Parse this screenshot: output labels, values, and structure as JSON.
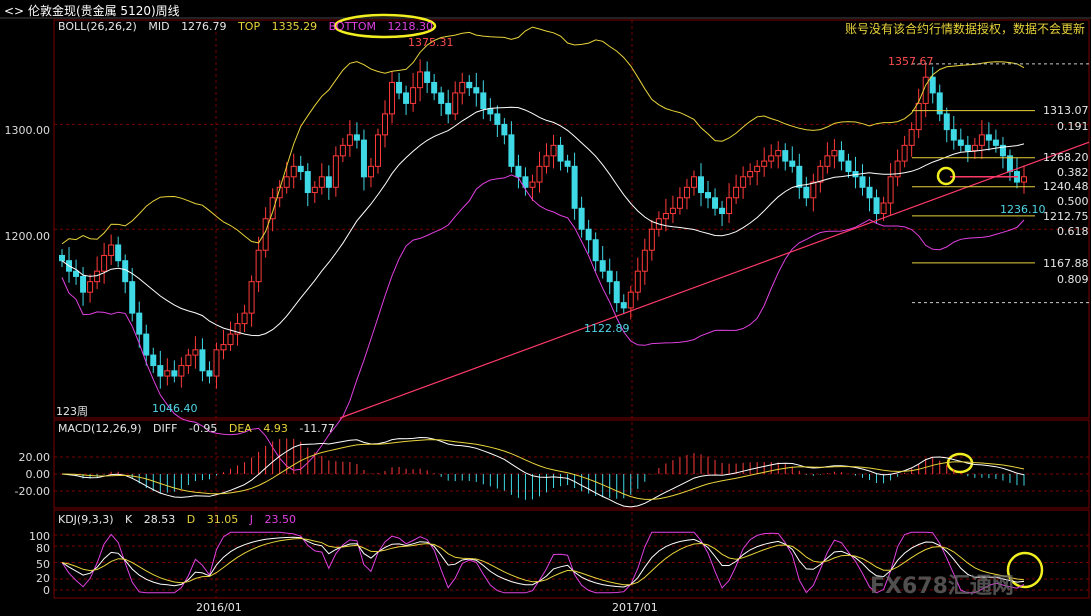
{
  "window": {
    "title": "伦敦金现(贵金属 5120)周线"
  },
  "boll": {
    "label": "BOLL(26,26,2)",
    "mid_label": "MID",
    "mid": "1276.79",
    "top_label": "TOP",
    "top": "1335.29",
    "bottom_label": "BOTTOM",
    "bottom": "1218.30"
  },
  "notice": "账号没有该合约行情数据授权，数据不会更新",
  "macd": {
    "label": "MACD(12,26,9)",
    "diff_label": "DIFF",
    "diff": "-0.95",
    "dea_label": "DEA",
    "dea": "4.93",
    "macd": "-11.77"
  },
  "kdj": {
    "label": "KDJ(9,3,3)",
    "k_label": "K",
    "k": "28.53",
    "d_label": "D",
    "d": "31.05",
    "j_label": "J",
    "j": "23.50"
  },
  "annotations": {
    "high1": "1375.31",
    "low1": "1046.40",
    "low2": "1122.89",
    "high2": "1357.67",
    "last_low": "1236.10",
    "period": "123周"
  },
  "fib": [
    {
      "price": "1313.07",
      "ratio": "0.191"
    },
    {
      "price": "1268.20",
      "ratio": "0.382"
    },
    {
      "price": "1240.48",
      "ratio": "0.500"
    },
    {
      "price": "1212.75",
      "ratio": "0.618"
    },
    {
      "price": "1167.88",
      "ratio": "0.809"
    }
  ],
  "watermark": "FX678汇通网",
  "colors": {
    "up": "#ff3a3a",
    "down": "#3fd9e6",
    "mid": "#ffffff",
    "upper": "#e8d33a",
    "lower": "#e040e0",
    "trend": "#ff3a6a",
    "grid": "#7a0000"
  },
  "chart_data": [
    {
      "type": "candlestick",
      "title": "伦敦金现 周线",
      "ylim": [
        1020,
        1390
      ],
      "yticks": [
        1200,
        1300
      ],
      "ytick_labels": [
        "1200.00",
        "1300.00"
      ],
      "xtick_labels": [
        "2016/01",
        "2017/01"
      ],
      "close_series": [
        1170,
        1160,
        1155,
        1140,
        1150,
        1160,
        1175,
        1185,
        1170,
        1150,
        1120,
        1100,
        1080,
        1070,
        1060,
        1065,
        1060,
        1070,
        1080,
        1085,
        1065,
        1060,
        1085,
        1090,
        1100,
        1110,
        1120,
        1150,
        1180,
        1210,
        1230,
        1240,
        1250,
        1260,
        1255,
        1235,
        1240,
        1250,
        1240,
        1270,
        1280,
        1290,
        1285,
        1250,
        1260,
        1290,
        1310,
        1340,
        1330,
        1320,
        1335,
        1350,
        1340,
        1330,
        1320,
        1310,
        1330,
        1340,
        1335,
        1330,
        1315,
        1310,
        1300,
        1290,
        1260,
        1250,
        1240,
        1245,
        1260,
        1270,
        1280,
        1265,
        1260,
        1220,
        1200,
        1190,
        1170,
        1160,
        1150,
        1130,
        1125,
        1140,
        1160,
        1180,
        1200,
        1210,
        1215,
        1220,
        1230,
        1240,
        1250,
        1235,
        1230,
        1220,
        1215,
        1230,
        1240,
        1250,
        1255,
        1260,
        1265,
        1270,
        1275,
        1265,
        1260,
        1240,
        1230,
        1245,
        1260,
        1270,
        1275,
        1265,
        1255,
        1250,
        1240,
        1230,
        1215,
        1225,
        1250,
        1265,
        1280,
        1295,
        1320,
        1345,
        1330,
        1310,
        1295,
        1285,
        1280,
        1275,
        1280,
        1290,
        1285,
        1280,
        1270,
        1255,
        1245,
        1250
      ],
      "bands": {
        "mid": "1276.79",
        "top": "1335.29",
        "bottom": "1218.30"
      },
      "fibonacci": [
        {
          "ratio": 0.191,
          "price": 1313.07
        },
        {
          "ratio": 0.382,
          "price": 1268.2
        },
        {
          "ratio": 0.5,
          "price": 1240.48
        },
        {
          "ratio": 0.618,
          "price": 1212.75
        },
        {
          "ratio": 0.809,
          "price": 1167.88
        }
      ]
    },
    {
      "type": "bar",
      "title": "MACD(12,26,9)",
      "yticks": [
        20,
        0,
        -20
      ],
      "ytick_labels": [
        "20.00",
        "0.00",
        "-20.00"
      ],
      "values": {
        "DIFF": -0.95,
        "DEA": 4.93,
        "MACD": -11.77
      }
    },
    {
      "type": "line",
      "title": "KDJ(9,3,3)",
      "yticks": [
        100,
        80,
        50,
        20,
        0
      ],
      "ytick_labels": [
        "100",
        "80",
        "50",
        "20",
        "0"
      ],
      "values": {
        "K": 28.53,
        "D": 31.05,
        "J": 23.5
      }
    }
  ]
}
